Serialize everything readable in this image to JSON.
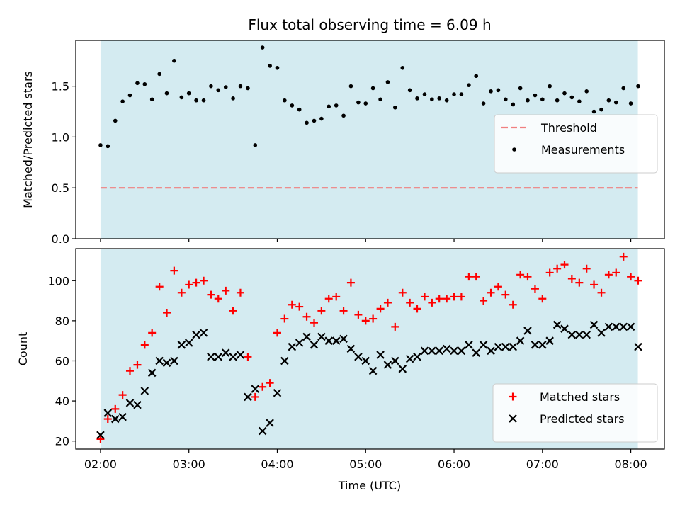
{
  "chart_data": {
    "title": "Flux total observing time = 6.09 h",
    "xlabel": "Time (UTC)",
    "x_tick_labels": [
      "02:00",
      "03:00",
      "04:00",
      "05:00",
      "06:00",
      "07:00",
      "08:00"
    ],
    "x_tick_hours": [
      2,
      3,
      4,
      5,
      6,
      7,
      8
    ],
    "xlim_hours": [
      1.72,
      8.38
    ],
    "observing_window_hours": [
      2.0,
      8.08
    ],
    "shade_color": "#d4ebf1",
    "panels": [
      {
        "type": "scatter",
        "ylabel": "Matched/Predicted stars",
        "ylim": [
          0,
          1.95
        ],
        "y_ticks": [
          0.0,
          0.5,
          1.0,
          1.5
        ],
        "y_tick_labels": [
          "0.0",
          "0.5",
          "1.0",
          "1.5"
        ],
        "legend_position": "right",
        "threshold": {
          "name": "Threshold",
          "value": 0.5,
          "color": "#f08080"
        },
        "series": [
          {
            "name": "Measurements",
            "color": "#000000",
            "marker": "dot",
            "x": [
              2.0,
              2.083,
              2.167,
              2.25,
              2.333,
              2.417,
              2.5,
              2.583,
              2.667,
              2.75,
              2.833,
              2.917,
              3.0,
              3.083,
              3.167,
              3.25,
              3.333,
              3.417,
              3.5,
              3.583,
              3.667,
              3.75,
              3.833,
              3.917,
              4.0,
              4.083,
              4.167,
              4.25,
              4.333,
              4.417,
              4.5,
              4.583,
              4.667,
              4.75,
              4.833,
              4.917,
              5.0,
              5.083,
              5.167,
              5.25,
              5.333,
              5.417,
              5.5,
              5.583,
              5.667,
              5.75,
              5.833,
              5.917,
              6.0,
              6.083,
              6.167,
              6.25,
              6.333,
              6.417,
              6.5,
              6.583,
              6.667,
              6.75,
              6.833,
              6.917,
              7.0,
              7.083,
              7.167,
              7.25,
              7.333,
              7.417,
              7.5,
              7.583,
              7.667,
              7.75,
              7.833,
              7.917,
              8.0,
              8.083
            ],
            "y": [
              0.92,
              0.91,
              1.16,
              1.35,
              1.41,
              1.53,
              1.52,
              1.37,
              1.62,
              1.43,
              1.75,
              1.39,
              1.43,
              1.36,
              1.36,
              1.5,
              1.46,
              1.49,
              1.38,
              1.5,
              1.48,
              0.92,
              1.88,
              1.7,
              1.68,
              1.36,
              1.31,
              1.27,
              1.14,
              1.16,
              1.18,
              1.3,
              1.31,
              1.21,
              1.5,
              1.34,
              1.33,
              1.48,
              1.37,
              1.54,
              1.29,
              1.68,
              1.46,
              1.38,
              1.42,
              1.37,
              1.38,
              1.36,
              1.42,
              1.42,
              1.51,
              1.6,
              1.33,
              1.45,
              1.46,
              1.37,
              1.32,
              1.48,
              1.36,
              1.41,
              1.37,
              1.5,
              1.36,
              1.43,
              1.39,
              1.35,
              1.45,
              1.25,
              1.27,
              1.36,
              1.34,
              1.48,
              1.33,
              1.5
            ]
          }
        ]
      },
      {
        "type": "scatter",
        "ylabel": "Count",
        "ylim": [
          16,
          116
        ],
        "y_ticks": [
          20,
          40,
          60,
          80,
          100
        ],
        "y_tick_labels": [
          "20",
          "40",
          "60",
          "80",
          "100"
        ],
        "legend_position": "lower right",
        "series": [
          {
            "name": "Matched stars",
            "color": "#ff0000",
            "marker": "plus",
            "x": [
              2.0,
              2.083,
              2.167,
              2.25,
              2.333,
              2.417,
              2.5,
              2.583,
              2.667,
              2.75,
              2.833,
              2.917,
              3.0,
              3.083,
              3.167,
              3.25,
              3.333,
              3.417,
              3.5,
              3.583,
              3.667,
              3.75,
              3.833,
              3.917,
              4.0,
              4.083,
              4.167,
              4.25,
              4.333,
              4.417,
              4.5,
              4.583,
              4.667,
              4.75,
              4.833,
              4.917,
              5.0,
              5.083,
              5.167,
              5.25,
              5.333,
              5.417,
              5.5,
              5.583,
              5.667,
              5.75,
              5.833,
              5.917,
              6.0,
              6.083,
              6.167,
              6.25,
              6.333,
              6.417,
              6.5,
              6.583,
              6.667,
              6.75,
              6.833,
              6.917,
              7.0,
              7.083,
              7.167,
              7.25,
              7.333,
              7.417,
              7.5,
              7.583,
              7.667,
              7.75,
              7.833,
              7.917,
              8.0,
              8.083
            ],
            "y": [
              21,
              31,
              36,
              43,
              55,
              58,
              68,
              74,
              97,
              84,
              105,
              94,
              98,
              99,
              100,
              93,
              91,
              95,
              85,
              94,
              62,
              42,
              47,
              49,
              74,
              81,
              88,
              87,
              82,
              79,
              85,
              91,
              92,
              85,
              99,
              83,
              80,
              81,
              86,
              89,
              77,
              94,
              89,
              86,
              92,
              89,
              91,
              91,
              92,
              92,
              102,
              102,
              90,
              94,
              97,
              93,
              88,
              103,
              102,
              96,
              91,
              104,
              106,
              108,
              101,
              99,
              106,
              98,
              94,
              103,
              104,
              112,
              102,
              100
            ]
          },
          {
            "name": "Predicted stars",
            "color": "#000000",
            "marker": "x",
            "x": [
              2.0,
              2.083,
              2.167,
              2.25,
              2.333,
              2.417,
              2.5,
              2.583,
              2.667,
              2.75,
              2.833,
              2.917,
              3.0,
              3.083,
              3.167,
              3.25,
              3.333,
              3.417,
              3.5,
              3.583,
              3.667,
              3.75,
              3.833,
              3.917,
              4.0,
              4.083,
              4.167,
              4.25,
              4.333,
              4.417,
              4.5,
              4.583,
              4.667,
              4.75,
              4.833,
              4.917,
              5.0,
              5.083,
              5.167,
              5.25,
              5.333,
              5.417,
              5.5,
              5.583,
              5.667,
              5.75,
              5.833,
              5.917,
              6.0,
              6.083,
              6.167,
              6.25,
              6.333,
              6.417,
              6.5,
              6.583,
              6.667,
              6.75,
              6.833,
              6.917,
              7.0,
              7.083,
              7.167,
              7.25,
              7.333,
              7.417,
              7.5,
              7.583,
              7.667,
              7.75,
              7.833,
              7.917,
              8.0,
              8.083
            ],
            "y": [
              23,
              34,
              31,
              32,
              39,
              38,
              45,
              54,
              60,
              59,
              60,
              68,
              69,
              73,
              74,
              62,
              62,
              64,
              62,
              63,
              42,
              46,
              25,
              29,
              44,
              60,
              67,
              69,
              72,
              68,
              72,
              70,
              70,
              71,
              66,
              62,
              60,
              55,
              63,
              58,
              60,
              56,
              61,
              62,
              65,
              65,
              65,
              66,
              65,
              65,
              68,
              64,
              68,
              65,
              67,
              67,
              67,
              70,
              75,
              68,
              68,
              70,
              78,
              76,
              73,
              73,
              73,
              78,
              74,
              77,
              77,
              77,
              77,
              67
            ]
          }
        ]
      }
    ]
  }
}
